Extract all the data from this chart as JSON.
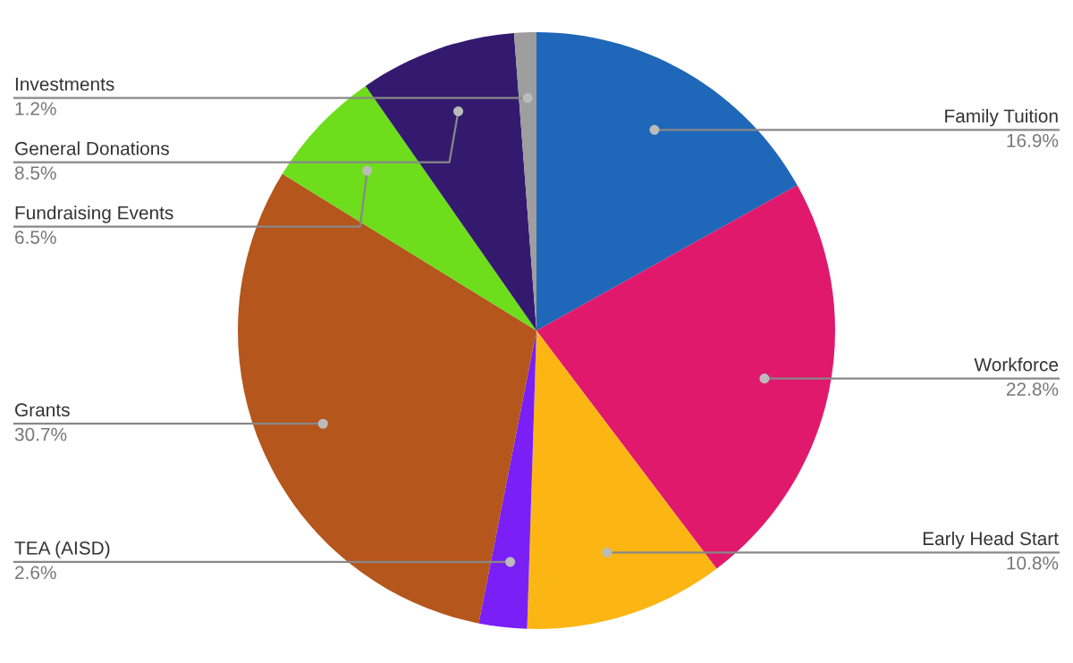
{
  "chart_data": {
    "type": "pie",
    "categories": [
      "Family Tuition",
      "Workforce",
      "Early Head Start",
      "TEA (AISD)",
      "Grants",
      "Fundraising Events",
      "General Donations",
      "Investments"
    ],
    "values": [
      16.9,
      22.8,
      10.8,
      2.6,
      30.7,
      6.5,
      8.5,
      1.2
    ],
    "colors": [
      "#1f67b8",
      "#e0196d",
      "#fcb614",
      "#7a1ff5",
      "#b5561d",
      "#6ddd1c",
      "#331a6e",
      "#9e9e9e"
    ],
    "value_labels": [
      "16.9%",
      "22.8%",
      "10.8%",
      "2.6%",
      "30.7%",
      "6.5%",
      "8.5%",
      "1.2%"
    ]
  }
}
